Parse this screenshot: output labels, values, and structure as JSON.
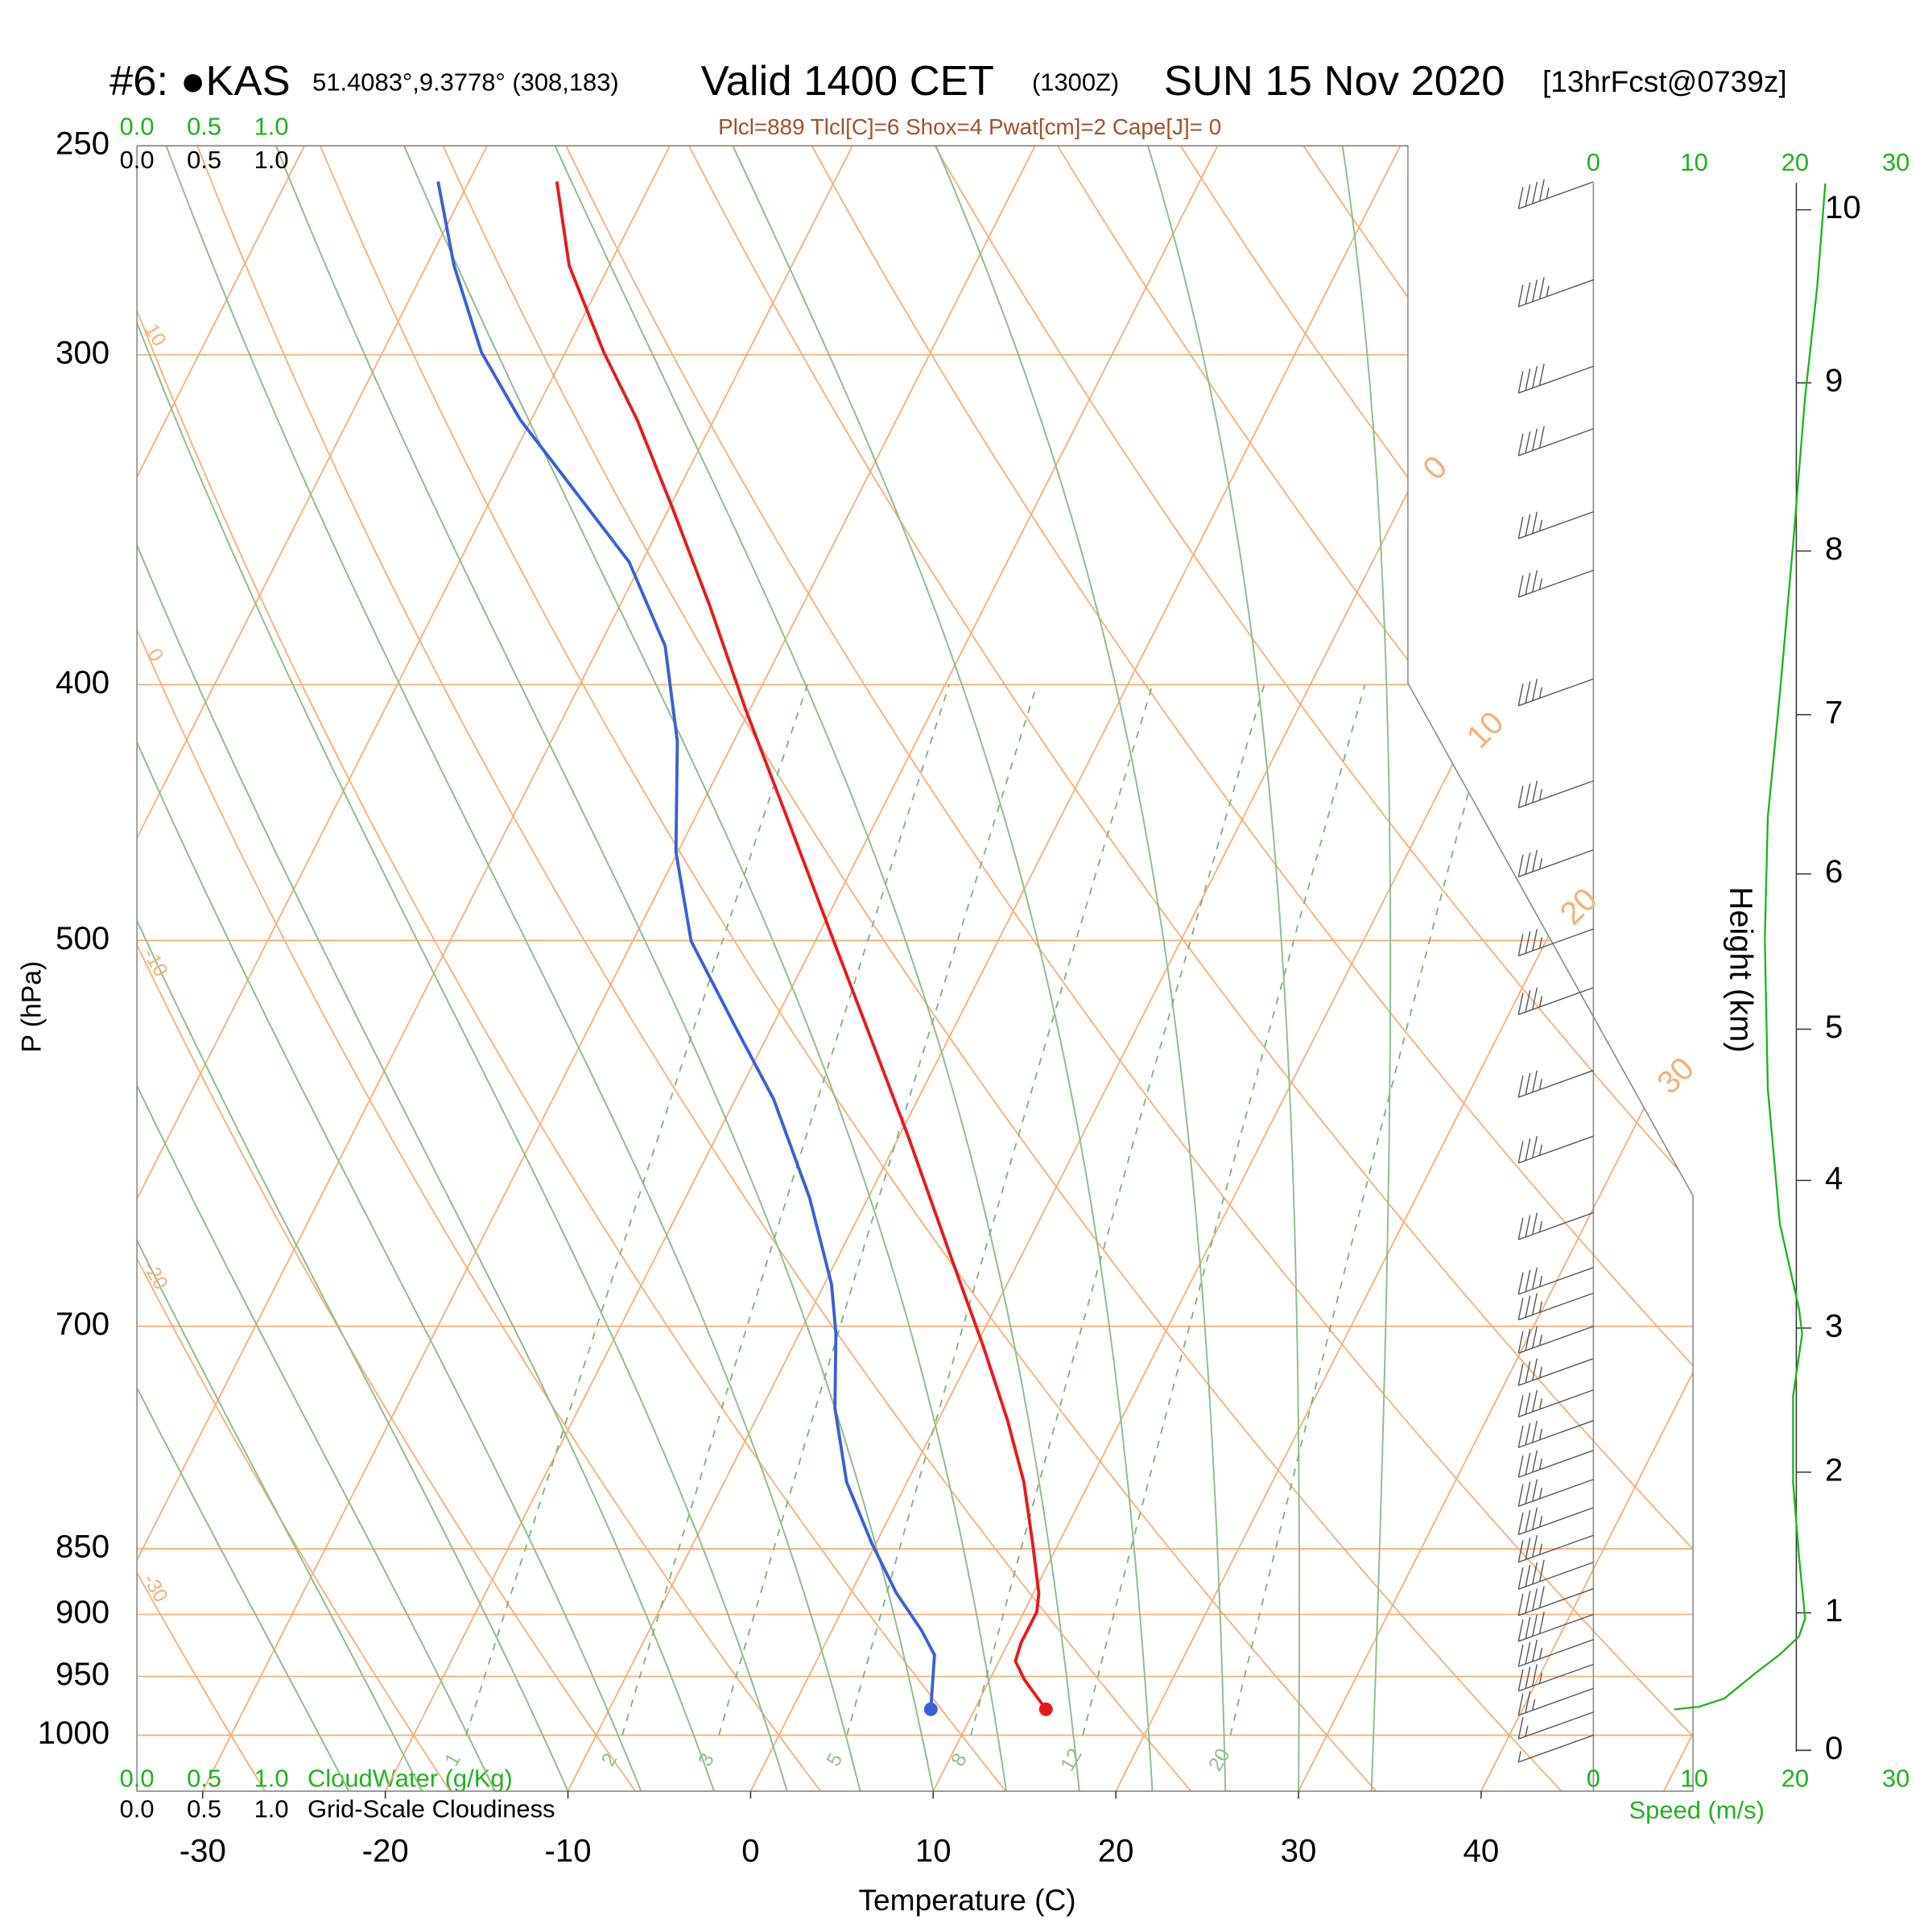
{
  "chart_data": {
    "type": "skewt",
    "title": "#6: ●KAS",
    "location": "51.4083°,9.3778° (308,183)",
    "valid": "Valid 1400 CET",
    "valid_utc": "(1300Z)",
    "date": "SUN 15 Nov 2020",
    "forecast": "[13hrFcst@0739z]",
    "subtitle": "Plcl=889 Tlcl[C]=6 Shox=4 Pwat[cm]=2 Cape[J]= 0",
    "xlabel": "Temperature (C)",
    "ylabel": "P (hPa)",
    "xlim": [
      -33.6,
      51.6
    ],
    "xticks": [
      -30,
      -20,
      -10,
      0,
      10,
      20,
      30,
      40
    ],
    "ylim": [
      1050,
      250
    ],
    "ylog": true,
    "yticks": [
      250,
      300,
      400,
      500,
      700,
      850,
      900,
      950,
      1000
    ],
    "isotherms": [
      -80,
      -70,
      -60,
      -50,
      -40,
      -30,
      -20,
      -10,
      0,
      10,
      20,
      30,
      40,
      50
    ],
    "isotherm_labels": [
      0,
      10,
      20,
      30
    ],
    "dry_adiabats": [
      -30,
      -20,
      -10,
      0,
      10,
      20,
      30,
      40,
      50,
      60,
      70,
      80,
      90,
      100,
      110,
      120
    ],
    "dry_adiabat_labels": [
      10,
      0,
      -10,
      -20,
      -30
    ],
    "moist_adiabats": [
      -22,
      -18,
      -14,
      -10,
      -6,
      -2,
      2,
      6,
      10,
      14,
      18,
      22,
      26,
      30,
      34
    ],
    "mixing_ratios": [
      1,
      2,
      3,
      5,
      8,
      12,
      20
    ],
    "series": [
      {
        "color": "#e8191c",
        "pressure": [
          257.9,
          277.5,
          299.3,
          317.5,
          342.4,
          373.2,
          409.0,
          453.0,
          499.3,
          544.2,
          593.2,
          660.5,
          712.1,
          759.9,
          801.9,
          846.3,
          883.5,
          897.9,
          922.4,
          937.4,
          952.7,
          977.6
        ],
        "values": [
          -55.2,
          -52.2,
          -47.9,
          -44.2,
          -39.9,
          -35.1,
          -30.2,
          -24.5,
          -19.1,
          -14.3,
          -9.5,
          -3.7,
          0.4,
          3.8,
          6.4,
          8.6,
          10.3,
          10.7,
          10.7,
          10.9,
          11.9,
          13.9
        ]
      },
      {
        "color": "#3b5fd6",
        "pressure": [
          257.9,
          277.5,
          299.3,
          317.5,
          338.0,
          359.4,
          386.7,
          420.2,
          462.9,
          500.3,
          538.3,
          574.3,
          625.9,
          674.9,
          704.6,
          751.7,
          801.9,
          846.3,
          883.5,
          912.5,
          932.4,
          977.6
        ],
        "values": [
          -61.7,
          -58.5,
          -54.6,
          -50.6,
          -45.6,
          -40.7,
          -36.4,
          -33.1,
          -30.1,
          -26.8,
          -22.1,
          -17.9,
          -13.2,
          -9.6,
          -8.0,
          -6.0,
          -3.3,
          -0.2,
          2.5,
          4.9,
          6.3,
          7.6
        ]
      }
    ],
    "wind_barbs": {
      "pressure": [
        258,
        281,
        303,
        320,
        344,
        362,
        398,
        435,
        462,
        495,
        521,
        560,
        593,
        634,
        665,
        680,
        700,
        720,
        740,
        760,
        780,
        800,
        820,
        840,
        860,
        880,
        900,
        920,
        940,
        960,
        980,
        1000
      ],
      "speed": [
        23,
        22,
        21,
        21,
        20,
        20,
        19,
        18,
        18,
        17,
        17,
        17,
        17,
        18,
        19,
        20,
        20,
        20,
        20,
        20,
        20,
        20,
        20,
        20,
        21,
        21,
        21,
        20,
        18,
        13,
        8,
        5
      ]
    },
    "height_axis": {
      "label": "Height (km)",
      "ticks": [
        0,
        1,
        2,
        3,
        4,
        5,
        6,
        7,
        8,
        9,
        10
      ]
    },
    "speed_axis": {
      "label": "Speed (m/s)",
      "lim": [
        0,
        30
      ],
      "ticks": [
        0,
        10,
        20,
        30
      ]
    },
    "speed_profile": {
      "color": "#22b022",
      "height": [
        10.15,
        9.56,
        8.92,
        8.04,
        7.13,
        6.36,
        5.58,
        4.61,
        3.71,
        3.13,
        2.96,
        2.53,
        1.93,
        1.4,
        0.96,
        0.83,
        0.7,
        0.56,
        0.38,
        0.32,
        0.3
      ],
      "speed": [
        23,
        22.2,
        21,
        19.8,
        18.5,
        17.3,
        17,
        17.3,
        18.5,
        20.4,
        20.7,
        19.8,
        19.8,
        20.4,
        21,
        20.4,
        18.5,
        16,
        13,
        10.5,
        8
      ]
    },
    "cloud_water": {
      "label": "CloudWater (g/Kg)",
      "color": "#22b022",
      "ticks": [
        {
          "value": 0,
          "label": "0.0"
        },
        {
          "value": 0.5,
          "label": "0.5"
        },
        {
          "value": 1,
          "label": "1.0"
        }
      ]
    },
    "cloudiness": {
      "label": "Grid-Scale Cloudiness",
      "color": "#000000",
      "ticks": [
        {
          "value": 0,
          "label": "0.0"
        },
        {
          "value": 0.5,
          "label": "0.5"
        },
        {
          "value": 1,
          "label": "1.0"
        }
      ]
    }
  }
}
